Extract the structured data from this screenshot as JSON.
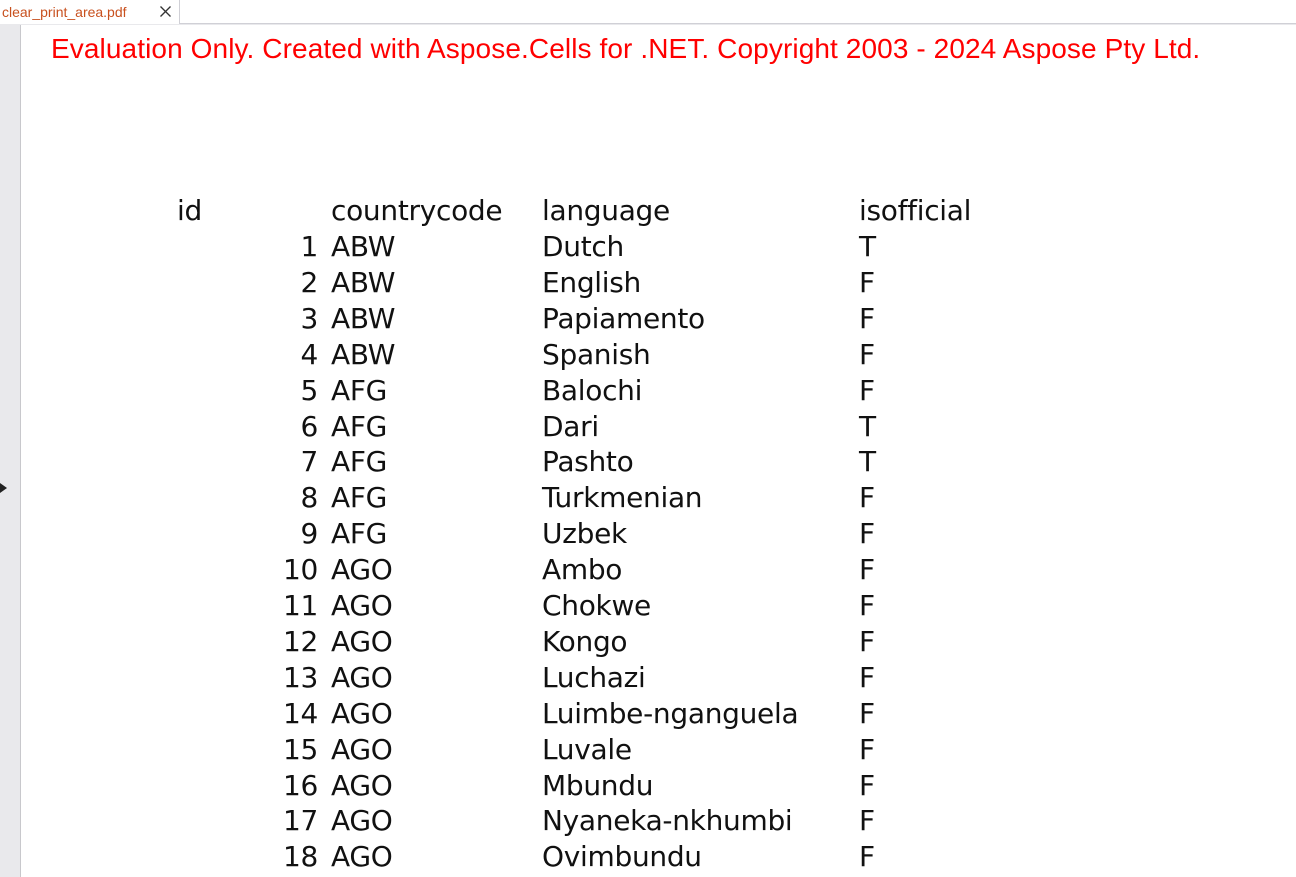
{
  "tab": {
    "title": "clear_print_area.pdf",
    "close_glyph": "✕"
  },
  "watermark": "Evaluation Only. Created with Aspose.Cells for .NET. Copyright 2003 - 2024 Aspose Pty Ltd.",
  "colors": {
    "watermark": "#ff0000",
    "tab_title": "#c8501e",
    "page_background": "#ffffff",
    "viewer_background": "#e9e9ec"
  },
  "table": {
    "headers": [
      "id",
      "countrycode",
      "language",
      "isofficial"
    ],
    "rows": [
      [
        "1",
        "ABW",
        "Dutch",
        "T"
      ],
      [
        "2",
        "ABW",
        "English",
        "F"
      ],
      [
        "3",
        "ABW",
        "Papiamento",
        "F"
      ],
      [
        "4",
        "ABW",
        "Spanish",
        "F"
      ],
      [
        "5",
        "AFG",
        "Balochi",
        "F"
      ],
      [
        "6",
        "AFG",
        "Dari",
        "T"
      ],
      [
        "7",
        "AFG",
        "Pashto",
        "T"
      ],
      [
        "8",
        "AFG",
        "Turkmenian",
        "F"
      ],
      [
        "9",
        "AFG",
        "Uzbek",
        "F"
      ],
      [
        "10",
        "AGO",
        "Ambo",
        "F"
      ],
      [
        "11",
        "AGO",
        "Chokwe",
        "F"
      ],
      [
        "12",
        "AGO",
        "Kongo",
        "F"
      ],
      [
        "13",
        "AGO",
        "Luchazi",
        "F"
      ],
      [
        "14",
        "AGO",
        "Luimbe-nganguela",
        "F"
      ],
      [
        "15",
        "AGO",
        "Luvale",
        "F"
      ],
      [
        "16",
        "AGO",
        "Mbundu",
        "F"
      ],
      [
        "17",
        "AGO",
        "Nyaneka-nkhumbi",
        "F"
      ],
      [
        "18",
        "AGO",
        "Ovimbundu",
        "F"
      ]
    ]
  }
}
